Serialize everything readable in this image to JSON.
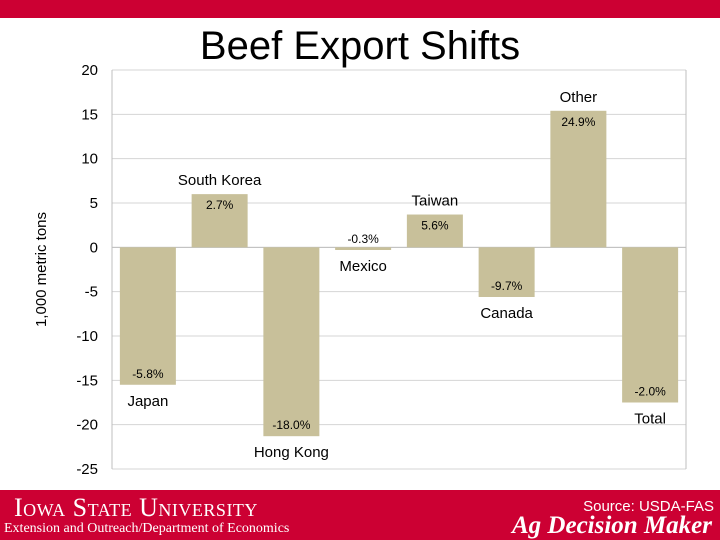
{
  "chart_data": {
    "type": "bar",
    "title": "Beef Export Shifts",
    "ylabel": "1,000 metric tons",
    "xlabel": "",
    "ylim": [
      -25,
      20
    ],
    "yticks": [
      "20",
      "15",
      "10",
      "5",
      "0",
      "-5",
      "-10",
      "-15",
      "-20",
      "-25"
    ],
    "grid": true,
    "categories": [
      "Japan",
      "South Korea",
      "Hong Kong",
      "Mexico",
      "Taiwan",
      "Canada",
      "Other",
      "Total"
    ],
    "values": [
      -15.5,
      6,
      -21.3,
      -0.3,
      3.7,
      -5.6,
      15.4,
      -17.5
    ],
    "data_labels": [
      "-5.8%",
      "2.7%",
      "-18.0%",
      "-0.3%",
      "5.6%",
      "-9.7%",
      "24.9%",
      "-2.0%"
    ],
    "bar_color": "#c8c09a"
  },
  "footer": {
    "university": "Iowa State University",
    "department": "Extension and Outreach/Department of Economics",
    "source": "Source: USDA-FAS",
    "brand": "Ag Decision Maker"
  },
  "colors": {
    "brand_red": "#cc0033"
  }
}
